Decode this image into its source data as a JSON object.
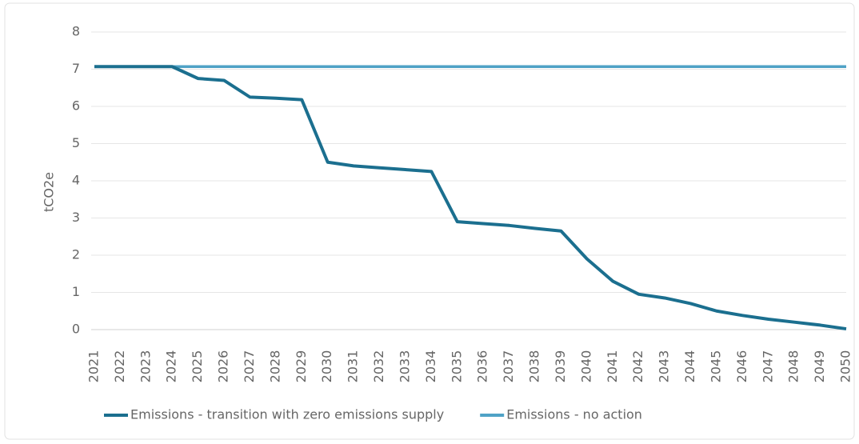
{
  "chart_data": {
    "type": "line",
    "ylabel": "tCO2e",
    "categories": [
      "2021",
      "2022",
      "2023",
      "2024",
      "2025",
      "2026",
      "2027",
      "2028",
      "2029",
      "2030",
      "2031",
      "2032",
      "2033",
      "2034",
      "2035",
      "2036",
      "2037",
      "2038",
      "2039",
      "2040",
      "2041",
      "2042",
      "2043",
      "2044",
      "2045",
      "2046",
      "2047",
      "2048",
      "2049",
      "2050"
    ],
    "series": [
      {
        "name": "Emissions - transition with zero emissions supply",
        "color": "#1b6f8f",
        "values": [
          7.07,
          7.07,
          7.07,
          7.07,
          6.75,
          6.7,
          6.25,
          6.22,
          6.18,
          4.5,
          4.4,
          4.35,
          4.3,
          4.25,
          2.9,
          2.85,
          2.8,
          2.72,
          2.65,
          1.9,
          1.3,
          0.95,
          0.85,
          0.7,
          0.5,
          0.38,
          0.28,
          0.2,
          0.12,
          0.02
        ]
      },
      {
        "name": "Emissions - no action",
        "color": "#4fa2c6",
        "values": [
          7.07,
          7.07,
          7.07,
          7.07,
          7.07,
          7.07,
          7.07,
          7.07,
          7.07,
          7.07,
          7.07,
          7.07,
          7.07,
          7.07,
          7.07,
          7.07,
          7.07,
          7.07,
          7.07,
          7.07,
          7.07,
          7.07,
          7.07,
          7.07,
          7.07,
          7.07,
          7.07,
          7.07,
          7.07,
          7.07
        ]
      }
    ],
    "ylim": [
      0,
      8
    ],
    "yticks": [
      0,
      1,
      2,
      3,
      4,
      5,
      6,
      7,
      8
    ],
    "grid": true,
    "legend": "bottom"
  }
}
